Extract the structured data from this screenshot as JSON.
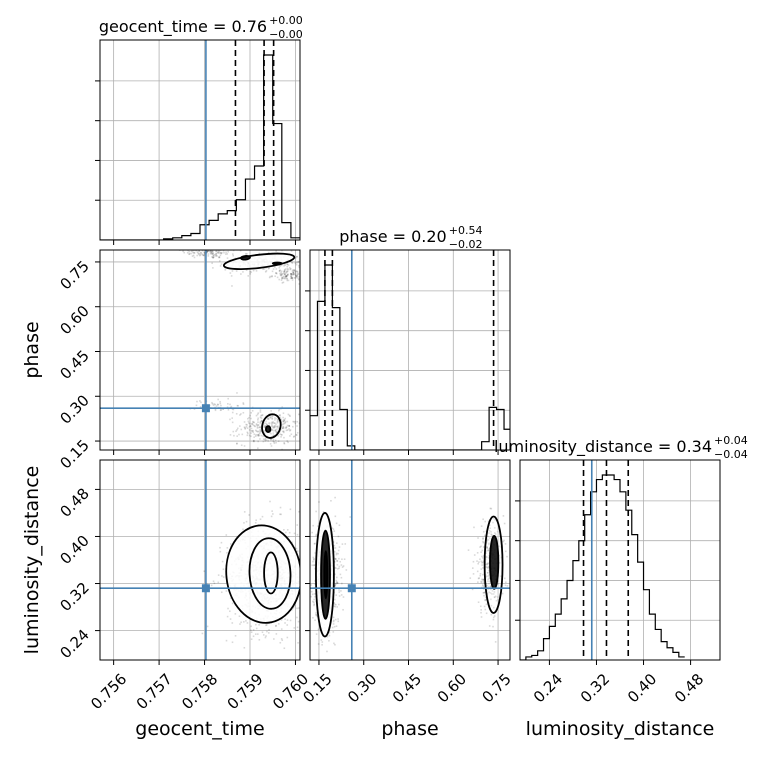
{
  "chart_data": {
    "type": "corner",
    "parameters": [
      "geocent_time",
      "phase",
      "luminosity_distance"
    ],
    "colors": {
      "truth": "#4682b4",
      "hist": "#000000",
      "grid": "#b0b0b0",
      "quantile": "#000000"
    },
    "grid": true,
    "titles": [
      {
        "param": "geocent_time",
        "text": "geocent_time = 0.76",
        "sup": "+0.00",
        "sub": "−0.00"
      },
      {
        "param": "phase",
        "text": "phase = 0.20",
        "sup": "+0.54",
        "sub": "−0.02"
      },
      {
        "param": "luminosity_distance",
        "text": "luminosity_distance = 0.34",
        "sup": "+0.04",
        "sub": "−0.04"
      }
    ],
    "axes": {
      "geocent_time": {
        "range": [
          0.7557,
          0.7601
        ],
        "ticks": [
          0.756,
          0.757,
          0.758,
          0.759,
          0.76
        ],
        "tick_labels": [
          "0.756",
          "0.757",
          "0.758",
          "0.759",
          "0.760"
        ],
        "label": "geocent_time"
      },
      "phase": {
        "range": [
          0.12,
          0.79
        ],
        "ticks": [
          0.15,
          0.3,
          0.45,
          0.6,
          0.75
        ],
        "tick_labels": [
          "0.15",
          "0.30",
          "0.45",
          "0.60",
          "0.75"
        ],
        "label": "phase"
      },
      "luminosity_distance": {
        "range": [
          0.19,
          0.53
        ],
        "ticks": [
          0.24,
          0.32,
          0.4,
          0.48
        ],
        "tick_labels": [
          "0.24",
          "0.32",
          "0.40",
          "0.48"
        ],
        "label": "luminosity_distance"
      }
    },
    "truths": {
      "geocent_time": 0.75803,
      "phase": 0.26,
      "luminosity_distance": 0.312
    },
    "quantiles": {
      "geocent_time": [
        0.75868,
        0.75931,
        0.75952
      ],
      "phase": [
        0.17,
        0.195,
        0.735
      ],
      "luminosity_distance": [
        0.298,
        0.337,
        0.374
      ]
    },
    "histograms": {
      "geocent_time": {
        "edges": [
          0.7557,
          0.7559,
          0.7561,
          0.7563,
          0.7565,
          0.7567,
          0.7569,
          0.7571,
          0.7573,
          0.7575,
          0.7577,
          0.7579,
          0.7581,
          0.7583,
          0.7585,
          0.7587,
          0.7589,
          0.7591,
          0.7593,
          0.7595,
          0.7597,
          0.7599,
          0.7601
        ],
        "counts": [
          0,
          0,
          0,
          0,
          0,
          0,
          0,
          1,
          2,
          4,
          6,
          14,
          18,
          24,
          27,
          37,
          56,
          68,
          170,
          107,
          16,
          2
        ]
      },
      "phase": {
        "edges": [
          0.12,
          0.145,
          0.17,
          0.195,
          0.22,
          0.245,
          0.27,
          0.295,
          0.32,
          0.345,
          0.37,
          0.395,
          0.42,
          0.445,
          0.47,
          0.495,
          0.52,
          0.545,
          0.57,
          0.595,
          0.62,
          0.645,
          0.67,
          0.695,
          0.72,
          0.745,
          0.77,
          0.795
        ],
        "counts": [
          33,
          143,
          178,
          137,
          39,
          4,
          0,
          0,
          0,
          0,
          0,
          0,
          0,
          0,
          0,
          0,
          0,
          0,
          0,
          0,
          0,
          0,
          0,
          8,
          41,
          39,
          20
        ]
      },
      "luminosity_distance": {
        "edges": [
          0.19,
          0.2,
          0.21,
          0.22,
          0.23,
          0.24,
          0.25,
          0.26,
          0.27,
          0.28,
          0.29,
          0.3,
          0.31,
          0.32,
          0.33,
          0.34,
          0.35,
          0.36,
          0.37,
          0.38,
          0.39,
          0.4,
          0.41,
          0.42,
          0.43,
          0.44,
          0.45,
          0.46,
          0.47
        ],
        "counts": [
          0,
          2,
          3,
          6,
          14,
          22,
          30,
          40,
          52,
          65,
          78,
          95,
          110,
          118,
          121,
          121,
          118,
          110,
          98,
          82,
          64,
          46,
          30,
          20,
          12,
          8,
          5,
          2
        ]
      }
    },
    "samples_2d": {
      "phase_vs_geocent_time": [
        {
          "x": 0.7581,
          "y": 0.786,
          "sx": 0.0003,
          "sy": 0.012,
          "n": 160,
          "name": "upper-arc"
        },
        {
          "x": 0.7593,
          "y": 0.745,
          "sx": 0.00045,
          "sy": 0.018,
          "n": 220,
          "name": "upper-main"
        },
        {
          "x": 0.7599,
          "y": 0.705,
          "sx": 0.0002,
          "sy": 0.01,
          "n": 120,
          "name": "upper-right"
        },
        {
          "x": 0.7594,
          "y": 0.195,
          "sx": 0.00033,
          "sy": 0.028,
          "n": 350,
          "name": "lower-main"
        },
        {
          "x": 0.7583,
          "y": 0.27,
          "sx": 0.00025,
          "sy": 0.012,
          "n": 50,
          "name": "lower-left"
        }
      ],
      "luminosity_distance_vs_geocent_time": [
        {
          "x": 0.7594,
          "y": 0.33,
          "sx": 0.00045,
          "sy": 0.045,
          "n": 900,
          "name": "main"
        }
      ],
      "luminosity_distance_vs_phase": [
        {
          "x": 0.175,
          "y": 0.335,
          "sx": 0.022,
          "sy": 0.045,
          "n": 700,
          "name": "left"
        },
        {
          "x": 0.72,
          "y": 0.345,
          "sx": 0.025,
          "sy": 0.04,
          "n": 300,
          "name": "right"
        }
      ]
    },
    "contours_2d": {
      "phase_vs_geocent_time": [
        {
          "cx": 0.7592,
          "cy": 0.752,
          "rx": 0.00078,
          "ry": 0.022,
          "rot": 0.12
        },
        {
          "cx": 0.7589,
          "cy": 0.764,
          "rx": 0.0001,
          "ry": 0.006,
          "rot": 0.1
        },
        {
          "cx": 0.7596,
          "cy": 0.745,
          "rx": 0.0001,
          "ry": 0.003,
          "rot": 0
        },
        {
          "cx": 0.75947,
          "cy": 0.2,
          "rx": 0.0002,
          "ry": 0.04,
          "rot": -0.25
        },
        {
          "cx": 0.7594,
          "cy": 0.19,
          "rx": 5e-05,
          "ry": 0.01,
          "rot": 0
        }
      ],
      "luminosity_distance_vs_geocent_time": [
        {
          "cx": 0.7593,
          "cy": 0.336,
          "rx": 0.00082,
          "ry": 0.083,
          "rot": 0.1
        },
        {
          "cx": 0.75944,
          "cy": 0.337,
          "rx": 0.00045,
          "ry": 0.06,
          "rot": 0.05
        },
        {
          "cx": 0.75946,
          "cy": 0.338,
          "rx": 0.00015,
          "ry": 0.035,
          "rot": 0
        }
      ],
      "luminosity_distance_vs_phase": [
        {
          "cx": 0.17,
          "cy": 0.335,
          "rx": 0.03,
          "ry": 0.105,
          "rot": 0
        },
        {
          "cx": 0.172,
          "cy": 0.335,
          "rx": 0.015,
          "ry": 0.075,
          "rot": 0
        },
        {
          "cx": 0.173,
          "cy": 0.335,
          "rx": 0.005,
          "ry": 0.04,
          "rot": 0
        },
        {
          "cx": 0.735,
          "cy": 0.352,
          "rx": 0.03,
          "ry": 0.082,
          "rot": 0
        },
        {
          "cx": 0.737,
          "cy": 0.356,
          "rx": 0.014,
          "ry": 0.045,
          "rot": 0
        }
      ]
    }
  }
}
